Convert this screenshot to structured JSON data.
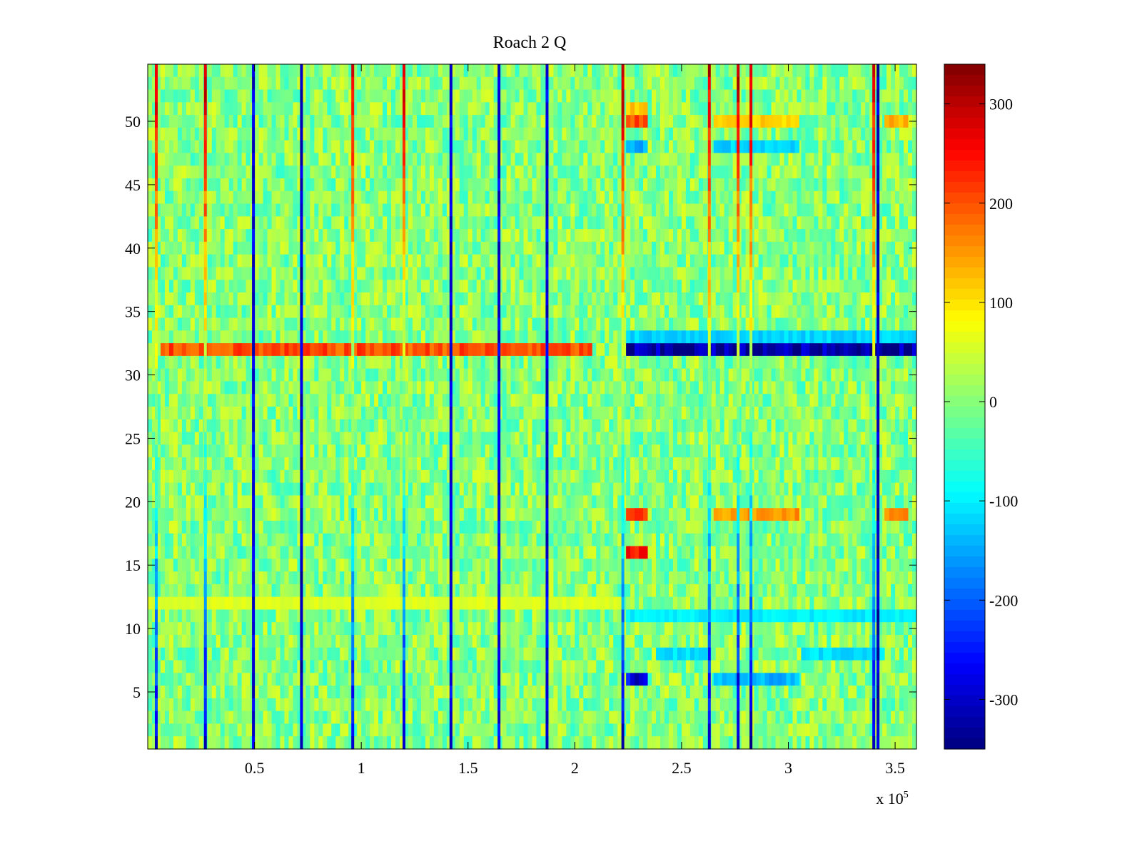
{
  "chart_data": {
    "type": "heatmap",
    "title": "Roach 2 Q",
    "xlabel": "",
    "ylabel": "",
    "x_range": [
      0,
      360000
    ],
    "y_range": [
      0.5,
      54.5
    ],
    "x_ticks": [
      {
        "value": 50000,
        "label": "0.5"
      },
      {
        "value": 100000,
        "label": "1"
      },
      {
        "value": 150000,
        "label": "1.5"
      },
      {
        "value": 200000,
        "label": "2"
      },
      {
        "value": 250000,
        "label": "2.5"
      },
      {
        "value": 300000,
        "label": "3"
      },
      {
        "value": 350000,
        "label": "3.5"
      }
    ],
    "x_exponent_label": {
      "base": "x 10",
      "exponent": "5"
    },
    "y_ticks": [
      {
        "value": 5,
        "label": "5"
      },
      {
        "value": 10,
        "label": "10"
      },
      {
        "value": 15,
        "label": "15"
      },
      {
        "value": 20,
        "label": "20"
      },
      {
        "value": 25,
        "label": "25"
      },
      {
        "value": 30,
        "label": "30"
      },
      {
        "value": 35,
        "label": "35"
      },
      {
        "value": 40,
        "label": "40"
      },
      {
        "value": 45,
        "label": "45"
      },
      {
        "value": 50,
        "label": "50"
      }
    ],
    "colorbar": {
      "colormap": "jet",
      "range": [
        -350,
        340
      ],
      "ticks": [
        {
          "value": 300,
          "label": "300"
        },
        {
          "value": 200,
          "label": "200"
        },
        {
          "value": 100,
          "label": "100"
        },
        {
          "value": 0,
          "label": "0"
        },
        {
          "value": -100,
          "label": "-100"
        },
        {
          "value": -200,
          "label": "-200"
        },
        {
          "value": -300,
          "label": "-300"
        }
      ]
    },
    "background_value_range": [
      -60,
      60
    ],
    "vertical_stripes": [
      {
        "x": 4000,
        "value_top": 280,
        "value_bottom": -280
      },
      {
        "x": 27000,
        "value_top": 300,
        "value_bottom": -300
      },
      {
        "x": 49500,
        "value_top": -280,
        "value_bottom": -280
      },
      {
        "x": 72000,
        "value_top": -300,
        "value_bottom": -300
      },
      {
        "x": 96000,
        "value_top": 280,
        "value_bottom": -280
      },
      {
        "x": 120000,
        "value_top": 280,
        "value_bottom": -280
      },
      {
        "x": 142000,
        "value_top": -280,
        "value_bottom": -280
      },
      {
        "x": 164500,
        "value_top": -280,
        "value_bottom": -280
      },
      {
        "x": 187000,
        "value_top": -280,
        "value_bottom": -280
      },
      {
        "x": 222500,
        "value_top": 300,
        "value_bottom": -300
      },
      {
        "x": 263000,
        "value_top": 290,
        "value_bottom": -300
      },
      {
        "x": 276500,
        "value_top": 300,
        "value_bottom": -320
      },
      {
        "x": 282500,
        "value_top": 300,
        "value_bottom": -320
      },
      {
        "x": 340000,
        "value_top": 290,
        "value_bottom": -300
      },
      {
        "x": 342000,
        "value_top": -300,
        "value_bottom": -300
      }
    ],
    "row_bands": [
      {
        "y": 32,
        "x_start": 6000,
        "x_end": 208000,
        "value": 200
      },
      {
        "y": 32,
        "x_start": 224000,
        "x_end": 360000,
        "value": -330
      },
      {
        "y": 33,
        "x_start": 224000,
        "x_end": 360000,
        "value": -120
      },
      {
        "y": 12,
        "x_start": 0,
        "x_end": 222000,
        "value": 60
      },
      {
        "y": 50,
        "x_start": 224000,
        "x_end": 234000,
        "value": 200
      },
      {
        "y": 51,
        "x_start": 224000,
        "x_end": 234000,
        "value": 120
      },
      {
        "y": 48,
        "x_start": 224000,
        "x_end": 234000,
        "value": -150
      },
      {
        "y": 19,
        "x_start": 224000,
        "x_end": 234000,
        "value": 240
      },
      {
        "y": 16,
        "x_start": 224000,
        "x_end": 234000,
        "value": 250
      },
      {
        "y": 6,
        "x_start": 224000,
        "x_end": 234000,
        "value": -280
      },
      {
        "y": 19,
        "x_start": 265000,
        "x_end": 305000,
        "value": 150
      },
      {
        "y": 50,
        "x_start": 265000,
        "x_end": 305000,
        "value": 110
      },
      {
        "y": 48,
        "x_start": 265000,
        "x_end": 305000,
        "value": -120
      },
      {
        "y": 6,
        "x_start": 265000,
        "x_end": 305000,
        "value": -140
      },
      {
        "y": 8,
        "x_start": 238000,
        "x_end": 262000,
        "value": -110
      },
      {
        "y": 8,
        "x_start": 306000,
        "x_end": 345000,
        "value": -110
      },
      {
        "y": 11,
        "x_start": 224000,
        "x_end": 360000,
        "value": -100
      },
      {
        "y": 50,
        "x_start": 345000,
        "x_end": 356000,
        "value": 140
      },
      {
        "y": 19,
        "x_start": 345000,
        "x_end": 356000,
        "value": 150
      }
    ]
  }
}
